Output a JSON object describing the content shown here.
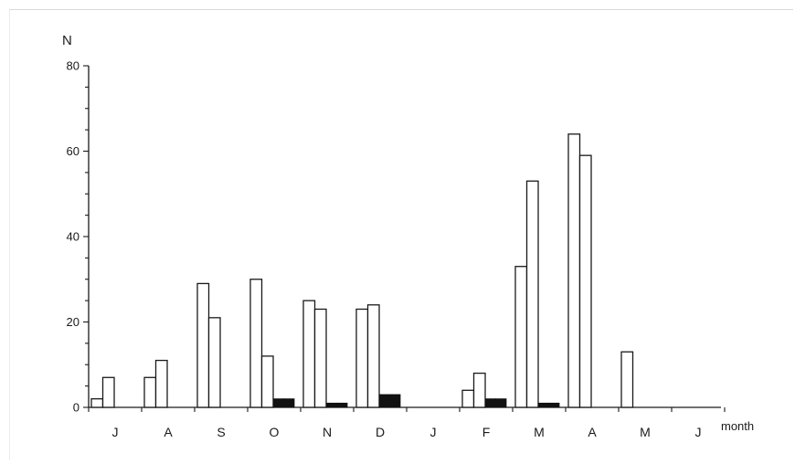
{
  "chart_data": {
    "type": "bar",
    "title": "",
    "ylabel": "N",
    "xlabel": "month",
    "ylim": [
      0,
      80
    ],
    "yticks": [
      0,
      20,
      40,
      60,
      80
    ],
    "months": [
      "J",
      "A",
      "S",
      "O",
      "N",
      "D",
      "J",
      "F",
      "M",
      "A",
      "M",
      "J"
    ],
    "series": [
      {
        "style": "open",
        "values": [
          [
            2,
            7
          ],
          [
            7,
            11
          ],
          [
            29,
            21
          ],
          [
            30,
            12
          ],
          [
            25,
            23
          ],
          [
            23,
            24
          ],
          [
            0,
            0
          ],
          [
            4,
            8
          ],
          [
            33,
            53
          ],
          [
            64,
            59
          ],
          [
            13,
            0
          ],
          [
            0,
            0
          ]
        ]
      },
      {
        "style": "filled",
        "values": [
          [
            0,
            0
          ],
          [
            0,
            0
          ],
          [
            0,
            0
          ],
          [
            2,
            2
          ],
          [
            1,
            1
          ],
          [
            3,
            3
          ],
          [
            0,
            0
          ],
          [
            2,
            2
          ],
          [
            1,
            1
          ],
          [
            0,
            0
          ],
          [
            0,
            0
          ],
          [
            0,
            0
          ]
        ]
      }
    ],
    "grid": false,
    "legend": "none"
  }
}
